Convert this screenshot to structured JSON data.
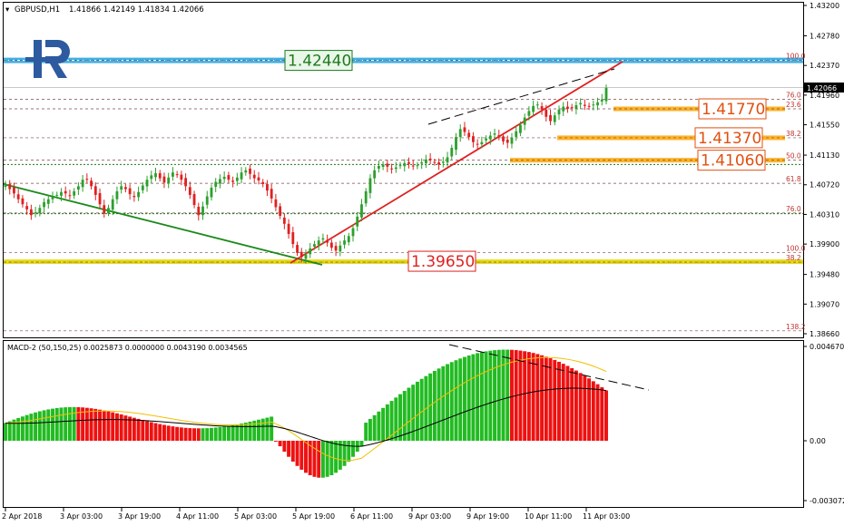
{
  "header": {
    "symbol": "GBPUSD,H1",
    "ohlc": "1.41866 1.42149 1.41834 1.42066"
  },
  "logo": {
    "brand_icon": "roboforex-r-logo-icon",
    "color": "#2e5a9f"
  },
  "colors": {
    "bull": "#2ca02c",
    "bear": "#e02020",
    "up_trend": "#e02020",
    "down_trend": "#1a8a1a",
    "fib_line": "#7a4a4a",
    "blue_level": "#2aa6e0",
    "orange_level": "#ffa500",
    "yellow_level": "#e6d800",
    "macd_up": "#22bb22",
    "macd_down": "#ee1111",
    "signal": "#f0c000",
    "macd_line": "#000000"
  },
  "current_price_label": "1.42066",
  "levels": [
    {
      "value": 1.4244,
      "label": "1.42440",
      "style": "green-box"
    },
    {
      "value": 1.4177,
      "label": "1.41770",
      "style": "orange-box"
    },
    {
      "value": 1.4137,
      "label": "1.41370",
      "style": "orange-box"
    },
    {
      "value": 1.4106,
      "label": "1.41060",
      "style": "orange-box"
    },
    {
      "value": 1.3965,
      "label": "1.39650",
      "style": "red-box"
    }
  ],
  "fib_right": [
    {
      "value": 1.4244,
      "label": "100.0"
    },
    {
      "value": 1.419,
      "label": "76.0"
    },
    {
      "value": 1.4177,
      "label": "23.6"
    },
    {
      "value": 1.4137,
      "label": "38.2"
    },
    {
      "value": 1.4106,
      "label": "50.0"
    },
    {
      "value": 1.4074,
      "label": "61.8"
    },
    {
      "value": 1.4033,
      "label": "76.0"
    },
    {
      "value": 1.3978,
      "label": "100.0"
    },
    {
      "value": 1.3965,
      "label": "38.2"
    },
    {
      "value": 1.387,
      "label": "138.2"
    }
  ],
  "macd": {
    "label": "MACD-2 (50,150,25) 0.0025873 0.0000000 0.0043190 0.0034565",
    "yticks": [
      "0.004670",
      "0.00",
      "-0.003072"
    ]
  },
  "chart_data": {
    "type": "candlestick",
    "price_yticks": [
      "1.43200",
      "1.42780",
      "1.42370",
      "1.41960",
      "1.41550",
      "1.41130",
      "1.40720",
      "1.40310",
      "1.39900",
      "1.39480",
      "1.39070",
      "1.38660"
    ],
    "ylim": [
      1.3866,
      1.432
    ],
    "xticks": [
      "2 Apr 2018",
      "3 Apr 03:00",
      "3 Apr 19:00",
      "4 Apr 11:00",
      "5 Apr 03:00",
      "5 Apr 19:00",
      "6 Apr 11:00",
      "9 Apr 03:00",
      "9 Apr 19:00",
      "10 Apr 11:00",
      "11 Apr 03:00"
    ],
    "closes": [
      1.4073,
      1.4066,
      1.406,
      1.4052,
      1.4045,
      1.4038,
      1.403,
      1.4034,
      1.404,
      1.4048,
      1.4052,
      1.4055,
      1.4058,
      1.4062,
      1.406,
      1.4057,
      1.4063,
      1.407,
      1.4079,
      1.408,
      1.407,
      1.4058,
      1.4045,
      1.4032,
      1.404,
      1.4052,
      1.4063,
      1.407,
      1.4066,
      1.4059,
      1.4055,
      1.4062,
      1.4071,
      1.4079,
      1.4085,
      1.4088,
      1.4081,
      1.4075,
      1.4082,
      1.4089,
      1.4086,
      1.4079,
      1.407,
      1.4058,
      1.4044,
      1.403,
      1.4042,
      1.4056,
      1.4068,
      1.4076,
      1.408,
      1.4083,
      1.4079,
      1.4076,
      1.4082,
      1.4089,
      1.4092,
      1.4087,
      1.4081,
      1.4078,
      1.4073,
      1.4064,
      1.4053,
      1.4041,
      1.4029,
      1.4018,
      1.4004,
      1.399,
      1.3978,
      1.3972,
      1.3976,
      1.3984,
      1.399,
      1.3995,
      1.3998,
      1.3992,
      1.3985,
      1.3981,
      1.3988,
      1.3995,
      1.4001,
      1.4012,
      1.4028,
      1.4045,
      1.4063,
      1.4081,
      1.4092,
      1.4098,
      1.41,
      1.4097,
      1.4094,
      1.4096,
      1.4099,
      1.4102,
      1.4101,
      1.4098,
      1.4099,
      1.4103,
      1.4107,
      1.4106,
      1.4103,
      1.41,
      1.4104,
      1.411,
      1.4123,
      1.4138,
      1.4149,
      1.4145,
      1.4138,
      1.4131,
      1.4128,
      1.4131,
      1.4136,
      1.414,
      1.4143,
      1.4139,
      1.4132,
      1.413,
      1.4137,
      1.4146,
      1.4155,
      1.4165,
      1.4174,
      1.4181,
      1.4183,
      1.4176,
      1.4166,
      1.416,
      1.4168,
      1.4176,
      1.418,
      1.4177,
      1.4178,
      1.4182,
      1.4185,
      1.4181,
      1.418,
      1.4183,
      1.4186,
      1.419,
      1.4206
    ]
  }
}
